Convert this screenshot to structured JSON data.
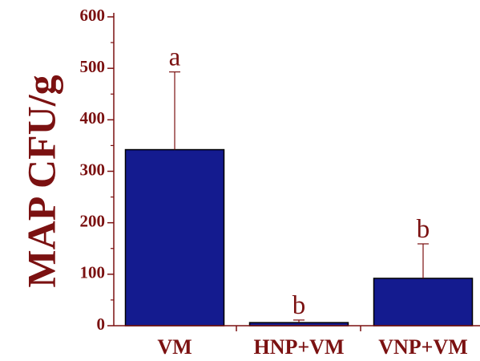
{
  "chart_data": {
    "type": "bar",
    "title": "",
    "xlabel": "",
    "ylabel": "MAP CFU/g",
    "ylim": [
      0,
      600
    ],
    "yticks": [
      0,
      100,
      200,
      300,
      400,
      500,
      600
    ],
    "categories": [
      "VM",
      "HNP+VM",
      "VNP+VM"
    ],
    "values": [
      342,
      6,
      92
    ],
    "error_upper": [
      151,
      5,
      67
    ],
    "significance_labels": [
      "a",
      "b",
      "b"
    ],
    "grid": false,
    "colors": {
      "bar_fill": "#141b8f",
      "bar_stroke": "#000000",
      "axis": "#7b1111",
      "text": "#7b1111",
      "error_bar": "#7b1111"
    }
  }
}
